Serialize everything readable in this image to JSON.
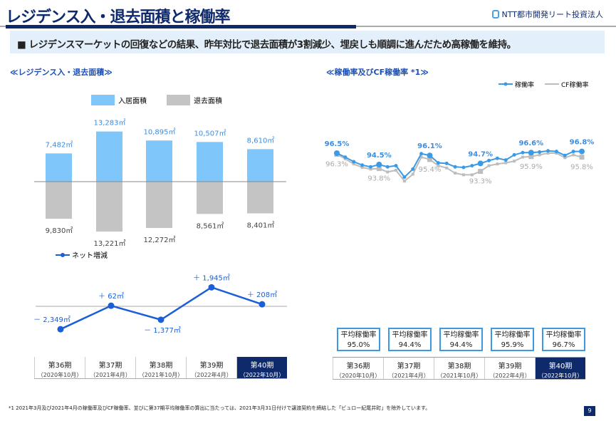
{
  "header": {
    "title": "レジデンス入・退去面積と稼働率",
    "logo_text": "NTT都市開発リート投資法人"
  },
  "banner": "■ レジデンスマーケットの回復などの結果、昨年対比で退去面積が3割減少、埋戻しも順調に進んだため高稼働を維持。",
  "left_section_title": "≪レジデンス入・退去面積≫",
  "right_section_title": "≪稼働率及びCF稼働率 *1≫",
  "periods": [
    {
      "name": "第36期",
      "sub": "（2020年10月）"
    },
    {
      "name": "第37期",
      "sub": "（2021年4月）"
    },
    {
      "name": "第38期",
      "sub": "（2021年10月）"
    },
    {
      "name": "第39期",
      "sub": "（2022年4月）"
    },
    {
      "name": "第40期",
      "sub": "（2022年10月）"
    }
  ],
  "chart_data": [
    {
      "type": "bar",
      "categories": [
        "第36期",
        "第37期",
        "第38期",
        "第39期",
        "第40期"
      ],
      "series": [
        {
          "name": "入居面積",
          "values": [
            7482,
            13283,
            10895,
            10507,
            8610
          ],
          "labels": [
            "7,482㎡",
            "13,283㎡",
            "10,895㎡",
            "10,507㎡",
            "8,610㎡"
          ],
          "color": "#7fc6fb"
        },
        {
          "name": "退去面積",
          "values": [
            -9830,
            -13221,
            -12272,
            -8561,
            -8401
          ],
          "labels": [
            "9,830㎡",
            "13,221㎡",
            "12,272㎡",
            "8,561㎡",
            "8,401㎡"
          ],
          "color": "#c4c4c4"
        }
      ]
    },
    {
      "type": "line",
      "categories": [
        "第36期",
        "第37期",
        "第38期",
        "第39期",
        "第40期"
      ],
      "series": [
        {
          "name": "ネット増減",
          "values": [
            -2349,
            62,
            -1377,
            1945,
            208
          ],
          "labels": [
            "－ 2,349㎡",
            "＋ 62㎡",
            "－ 1,377㎡",
            "＋ 1,945㎡",
            "＋ 208㎡"
          ],
          "color": "#1a5fd6"
        }
      ]
    },
    {
      "type": "line",
      "legend": "top-right",
      "series": [
        {
          "name": "稼働率",
          "color": "#3b9ae6",
          "values": [
            96.5,
            95.8,
            95.0,
            94.4,
            94.1,
            94.5,
            94.1,
            94.3,
            92.3,
            93.7,
            96.4,
            96.1,
            94.8,
            94.7,
            94.1,
            94.0,
            94.3,
            94.7,
            95.2,
            95.6,
            95.3,
            96.2,
            96.6,
            96.6,
            96.7,
            96.9,
            96.8,
            96.1,
            96.8,
            96.8
          ],
          "labels": {
            "0": "96.5%",
            "5": "94.5%",
            "11": "96.1%",
            "17": "94.7%",
            "23": "96.6%",
            "29": "96.8%"
          }
        },
        {
          "name": "CF稼働率",
          "color": "#bdbdbd",
          "values": [
            96.3,
            95.5,
            94.6,
            94.0,
            93.7,
            93.8,
            93.2,
            93.5,
            91.6,
            92.8,
            95.8,
            95.4,
            94.3,
            93.9,
            93.0,
            92.7,
            92.7,
            93.3,
            94.3,
            94.6,
            94.8,
            95.1,
            95.8,
            95.9,
            96.2,
            96.5,
            96.5,
            95.7,
            96.2,
            95.8
          ],
          "labels": {
            "0": "96.3%",
            "5": "93.8%",
            "11": "95.4%",
            "17": "93.3%",
            "23": "95.9%",
            "29": "95.8%"
          }
        }
      ]
    }
  ],
  "averages": {
    "label": "平均稼働率",
    "values": [
      "95.0%",
      "94.4%",
      "94.4%",
      "95.9%",
      "96.7%"
    ]
  },
  "footnote": "*1  2021年3月及び2021年4月の稼働率及びCF稼働率、並びに第37期平均稼働率の算出に当たっては、2021年3月31日付けで譲渡契約を締結した「ビュロー紀尾井町」を除外しています。",
  "page_number": "9"
}
